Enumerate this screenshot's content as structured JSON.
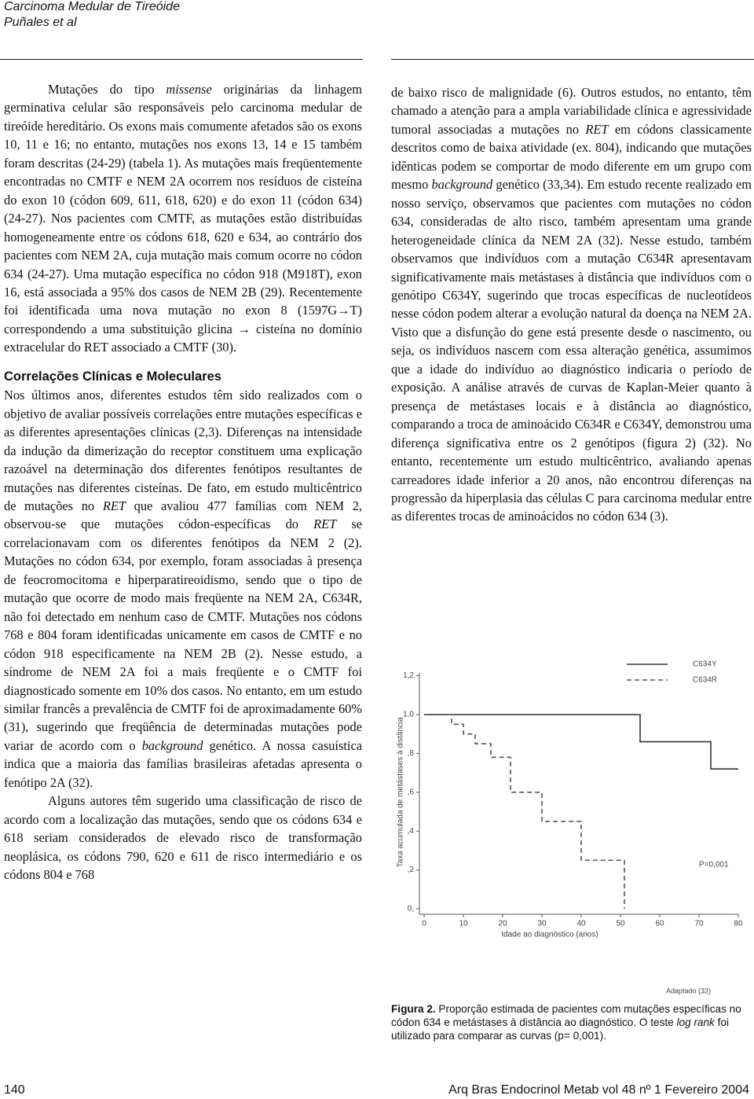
{
  "header": {
    "title": "Carcinoma Medular de Tireóide",
    "authors": "Puñales et al"
  },
  "left": [
    {
      "indent": true,
      "segments": [
        "Mutações do tipo ",
        {
          "i": "missense"
        },
        " originárias da linhagem germinativa celular são responsáveis pelo carcinoma medular de tireóide hereditário. Os exons mais comumente afetados são os exons 10, 11 e 16; no entanto, mutações nos exons 13, 14 e 15 também foram descritas (24-29) (tabela 1). As mutações mais freqüentemente encontradas no CMTF e NEM 2A ocorrem nos resíduos de cisteína do exon 10 (códon 609, 611, 618, 620) e do exon 11 (códon 634) (24-27). Nos pacientes com CMTF, as mutações estão distribuídas homogeneamente entre os códons 618, 620 e 634, ao contrário dos pacientes com NEM 2A, cuja mutação mais comum ocorre no códon 634 (24-27). Uma mutação específica no códon 918 (M918T), exon 16, está associada a 95% dos casos de NEM 2B (29). Recentemente foi identificada uma nova mutação no exon 8 (1597G→T) correspondendo a uma substituição glicina → cisteína no domínio extracelular do RET associado a CMTF (30)."
      ]
    },
    {
      "heading": "Correlações Clínicas e Moleculares"
    },
    {
      "indent": false,
      "segments": [
        "Nos últimos anos, diferentes estudos têm sido realizados com o objetivo de avaliar possíveis correlações entre mutações específicas e as diferentes apresentações clínicas (2,3). Diferenças na intensidade da indução da dimerização do receptor constituem uma explicação razoável na determinação dos diferentes fenótipos resultantes de mutações nas diferentes cisteínas. De fato, em estudo multicêntrico de mutações no ",
        {
          "i": "RET"
        },
        " que avaliou 477 famílias com NEM 2, observou-se que mutações códon-específicas do ",
        {
          "i": "RET"
        },
        " se correlacionavam com os diferentes fenótipos da NEM 2 (2). Mutações no códon 634, por exemplo, foram associadas à presença de feocromocitoma e hiperparatireoidismo, sendo que o tipo de mutação que ocorre de modo mais freqüente na NEM 2A, C634R, não foi detectado em nenhum caso de CMTF. Mutações nos códons 768 e 804 foram identificadas unicamente em casos de CMTF e no códon 918 especificamente na NEM 2B (2). Nesse estudo, a síndrome de NEM 2A foi a mais freqüente e o CMTF foi diagnosticado somente em 10% dos casos. No entanto, em um estudo similar francês a prevalência de CMTF foi de aproximadamente 60% (31), sugerindo que freqüência de determinadas mutações pode variar de acordo com o ",
        {
          "i": "background"
        },
        " genético. A nossa casuística indica que a maioria das famílias brasileiras afetadas apresenta o fenótipo 2A (32)."
      ]
    },
    {
      "indent": true,
      "segments": [
        "Alguns autores têm sugerido uma classificação de risco de acordo com a localização das mutações, sendo que os códons 634 e 618 seriam considerados de elevado risco de transformação neoplásica, os códons 790, 620 e 611 de risco intermediário e os códons 804 e 768"
      ]
    }
  ],
  "right": [
    {
      "indent": false,
      "segments": [
        "de baixo risco de malignidade (6). Outros estudos, no entanto, têm chamado a atenção para a ampla variabilidade clínica e agressividade tumoral associadas a mutações no ",
        {
          "i": "RET"
        },
        " em códons classicamente descritos como de baixa atividade (ex. 804), indicando que mutações idênticas podem se comportar de modo diferente em um grupo com mesmo ",
        {
          "i": "background"
        },
        " genético (33,34). Em estudo recente realizado em nosso serviço, observamos que pacientes com mutações no códon 634, consideradas de alto risco, também apresentam uma grande heterogeneidade clínica da NEM 2A (32). Nesse estudo, também observamos que indivíduos com a mutação C634R apresentavam significativamente mais metástases à distância que indivíduos com o genótipo C634Y, sugerindo que trocas específicas de nucleotídeos nesse códon podem alterar a evolução natural da doença na NEM 2A. Visto que a disfunção do gene está presente desde o nascimento, ou seja, os indivíduos nascem com essa alteração genética, assumimos que a idade do indivíduo ao diagnóstico indicaria o período de exposição. A análise através de curvas de Kaplan-Meier quanto à presença de metástases locais e à distância ao diagnóstico, comparando a troca de aminoácido C634R e C634Y, demonstrou uma diferença significativa entre os 2 genótipos (figura 2) (32). No entanto, recentemente um estudo multicêntrico, avaliando apenas carreadores idade inferior a 20 anos, não encontrou diferenças na progressão da hiperplasia das células C para carcinoma medular entre as diferentes trocas de aminoácidos no códon 634 (3)."
      ]
    }
  ],
  "chart_data": {
    "type": "line",
    "x_label": "Idade ao diagnóstico (anos)",
    "y_label": "Taxa acumulada de metástases à distância",
    "annotation": "P=0,001",
    "source": "Adaptado (32)",
    "xlim": [
      0,
      80
    ],
    "xticks": [
      0,
      10,
      20,
      30,
      40,
      50,
      60,
      70,
      80
    ],
    "ylim": [
      0,
      1.2
    ],
    "yticks": [
      {
        "value": 0,
        "label": "0,"
      },
      {
        "value": 0.2,
        "label": ",2"
      },
      {
        "value": 0.4,
        "label": ",4"
      },
      {
        "value": 0.6,
        "label": ",6"
      },
      {
        "value": 0.8,
        "label": ",8"
      },
      {
        "value": 1.0,
        "label": "1,0"
      },
      {
        "value": 1.2,
        "label": "1,2"
      }
    ],
    "series": [
      {
        "name": "C634Y",
        "color": "#333333",
        "dash": false,
        "x": [
          0,
          55,
          55,
          73,
          73,
          80
        ],
        "values": [
          1,
          1,
          0.86,
          0.86,
          0.72,
          0.72
        ]
      },
      {
        "name": "C634R",
        "color": "#555555",
        "dash": true,
        "x": [
          0,
          7,
          7,
          10,
          10,
          13,
          13,
          17,
          17,
          22,
          22,
          30,
          30,
          40,
          40,
          51,
          51
        ],
        "values": [
          1,
          1,
          0.95,
          0.95,
          0.9,
          0.9,
          0.85,
          0.85,
          0.78,
          0.78,
          0.6,
          0.6,
          0.45,
          0.45,
          0.25,
          0.25,
          0
        ]
      }
    ]
  },
  "caption": {
    "label": "Figura 2.",
    "segments": [
      " Proporção estimada de pacientes com mutações específicas no códon 634 e metástases à distância ao diagnóstico. O teste ",
      {
        "i": "log rank"
      },
      " foi utilizado para comparar as curvas (p= 0,001)."
    ]
  },
  "footer": {
    "page": "140",
    "journal": "Arq Bras Endocrinol Metab vol 48 nº 1 Fevereiro 2004"
  }
}
